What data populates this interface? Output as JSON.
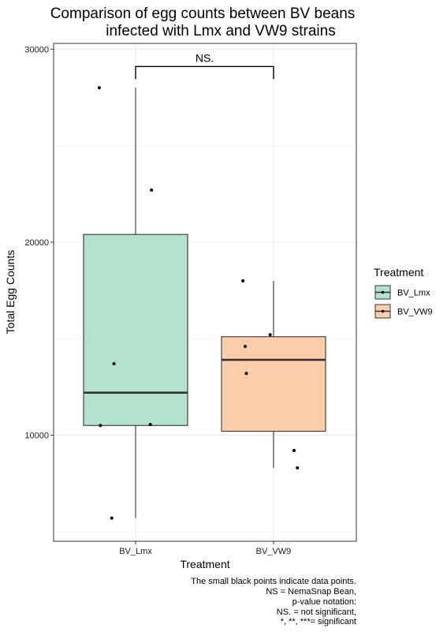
{
  "chart_data": {
    "type": "boxplot",
    "title_lines": [
      "Comparison of egg counts between BV beans",
      "infected with Lmx and VW9 strains"
    ],
    "xlabel": "Treatment",
    "ylabel": "Total Egg Counts",
    "ylim": [
      4500,
      30300
    ],
    "y_ticks": [
      10000,
      20000,
      30000
    ],
    "y_tick_labels": [
      "10000",
      "20000",
      "30000"
    ],
    "grid": true,
    "categories": [
      "BV_Lmx",
      "BV_VW9"
    ],
    "boxes": [
      {
        "category": "BV_Lmx",
        "whisker_low": 5700,
        "q1": 10500,
        "median": 12200,
        "q3": 20400,
        "whisker_high": 28000,
        "fill": "#b3e2cd"
      },
      {
        "category": "BV_VW9",
        "whisker_low": 8300,
        "q1": 10200,
        "median": 13900,
        "q3": 15100,
        "whisker_high": 18000,
        "fill": "#fdcdac"
      }
    ],
    "points": [
      {
        "category": "BV_Lmx",
        "jitter": -0.32,
        "y": 28000
      },
      {
        "category": "BV_Lmx",
        "jitter": 0.14,
        "y": 22700
      },
      {
        "category": "BV_Lmx",
        "jitter": -0.19,
        "y": 13700
      },
      {
        "category": "BV_Lmx",
        "jitter": -0.31,
        "y": 10500
      },
      {
        "category": "BV_Lmx",
        "jitter": 0.13,
        "y": 10550
      },
      {
        "category": "BV_Lmx",
        "jitter": -0.21,
        "y": 5700
      },
      {
        "category": "BV_VW9",
        "jitter": -0.27,
        "y": 18000
      },
      {
        "category": "BV_VW9",
        "jitter": -0.25,
        "y": 14600
      },
      {
        "category": "BV_VW9",
        "jitter": -0.24,
        "y": 13200
      },
      {
        "category": "BV_VW9",
        "jitter": -0.03,
        "y": 15200
      },
      {
        "category": "BV_VW9",
        "jitter": 0.18,
        "y": 9200
      },
      {
        "category": "BV_VW9",
        "jitter": 0.21,
        "y": 8300
      }
    ],
    "significance": {
      "label": "NS.",
      "from": "BV_Lmx",
      "to": "BV_VW9",
      "y": 29100,
      "tip_low": 28450
    },
    "legend": {
      "title": "Treatment",
      "position": "right",
      "entries": [
        {
          "label": "BV_Lmx",
          "fill": "#b3e2cd"
        },
        {
          "label": "BV_VW9",
          "fill": "#fdcdac"
        }
      ]
    },
    "caption_lines": [
      "The small black points indicate data points.",
      "NS = NemaSnap Bean,",
      "p-value notation:",
      "NS. = not significant,",
      "*, **, ***= significant"
    ]
  },
  "colors": {
    "box_outline": "#333333",
    "median": "#333333",
    "point": "#000000",
    "grid": "#ebebeb",
    "panel_border": "#333333"
  }
}
